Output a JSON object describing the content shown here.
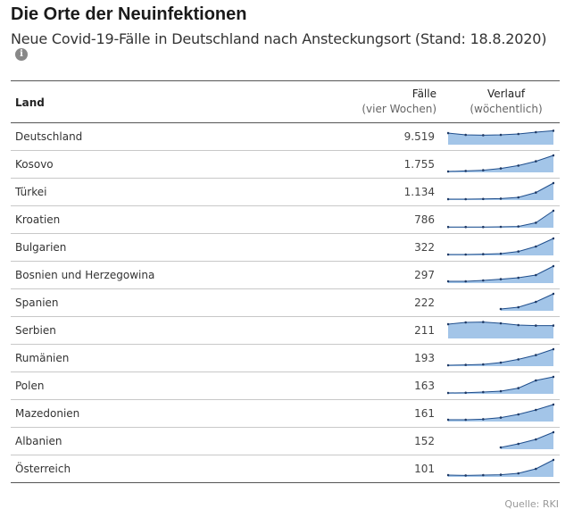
{
  "header": {
    "title": "Die Orte der Neuinfektionen",
    "subtitle": "Neue Covid-19-Fälle in Deutschland nach Ansteckungsort (Stand: 18.8.2020)",
    "info_icon": "i"
  },
  "table": {
    "col_land": "Land",
    "col_faelle_1": "Fälle",
    "col_faelle_2": "(vier Wochen)",
    "col_verlauf_1": "Verlauf",
    "col_verlauf_2": "(wöchentlich)"
  },
  "colors": {
    "area": "#a3c5e8",
    "line": "#1f4e8c",
    "dot": "#1f3a66"
  },
  "chart_data": {
    "type": "table",
    "columns": [
      "Land",
      "Fälle (vier Wochen)",
      "Verlauf (wöchentlich)"
    ],
    "rows": [
      {
        "land": "Deutschland",
        "faelle": "9.519",
        "trend": [
          0.65,
          0.55,
          0.53,
          0.55,
          0.6,
          0.7,
          0.78
        ]
      },
      {
        "land": "Kosovo",
        "faelle": "1.755",
        "trend": [
          0.05,
          0.08,
          0.12,
          0.22,
          0.38,
          0.62,
          0.95
        ]
      },
      {
        "land": "Türkei",
        "faelle": "1.134",
        "trend": [
          0.05,
          0.05,
          0.06,
          0.08,
          0.15,
          0.42,
          0.95
        ]
      },
      {
        "land": "Kroatien",
        "faelle": "786",
        "trend": [
          0.04,
          0.04,
          0.04,
          0.05,
          0.07,
          0.28,
          0.95
        ]
      },
      {
        "land": "Bulgarien",
        "faelle": "322",
        "trend": [
          0.05,
          0.05,
          0.07,
          0.1,
          0.22,
          0.5,
          0.95
        ]
      },
      {
        "land": "Bosnien und Herzegowina",
        "faelle": "297",
        "trend": [
          0.1,
          0.1,
          0.15,
          0.22,
          0.3,
          0.45,
          0.95
        ]
      },
      {
        "land": "Spanien",
        "faelle": "222",
        "trend": [
          null,
          null,
          null,
          0.1,
          0.2,
          0.5,
          0.95
        ]
      },
      {
        "land": "Serbien",
        "faelle": "211",
        "trend": [
          0.8,
          0.9,
          0.92,
          0.85,
          0.75,
          0.72,
          0.72
        ]
      },
      {
        "land": "Rumänien",
        "faelle": "193",
        "trend": [
          0.05,
          0.07,
          0.1,
          0.2,
          0.38,
          0.62,
          0.95
        ]
      },
      {
        "land": "Polen",
        "faelle": "163",
        "trend": [
          0.05,
          0.06,
          0.1,
          0.15,
          0.32,
          0.75,
          0.95
        ]
      },
      {
        "land": "Mazedonien",
        "faelle": "161",
        "trend": [
          0.1,
          0.1,
          0.13,
          0.22,
          0.4,
          0.65,
          0.95
        ]
      },
      {
        "land": "Albanien",
        "faelle": "152",
        "trend": [
          null,
          null,
          null,
          0.1,
          0.3,
          0.55,
          0.95
        ]
      },
      {
        "land": "Österreich",
        "faelle": "101",
        "trend": [
          0.1,
          0.08,
          0.1,
          0.12,
          0.2,
          0.45,
          0.95
        ]
      }
    ]
  },
  "footer": {
    "source": "Quelle: RKI"
  }
}
